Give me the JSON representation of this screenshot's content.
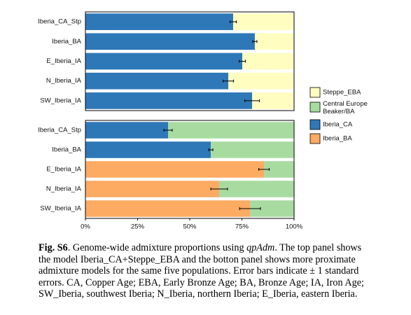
{
  "chart_data": [
    {
      "type": "bar",
      "orientation": "horizontal",
      "stacked": true,
      "categories": [
        "Iberia_CA_Stp",
        "Iberia_BA",
        "E_Iberia_IA",
        "N_Iberia_IA",
        "SW_Iberia_IA"
      ],
      "series": [
        {
          "name": "Iberia_CA",
          "color": "#2e78b7",
          "values": [
            70.8,
            81.2,
            75.2,
            68.5,
            79.9
          ],
          "errors": [
            1.5,
            1,
            1.5,
            2.5,
            3.5
          ]
        },
        {
          "name": "Steppe_EBA",
          "color": "#fffdc0",
          "values": [
            29.2,
            18.8,
            24.8,
            31.5,
            20.1
          ]
        }
      ],
      "xlim": [
        0,
        100
      ]
    },
    {
      "type": "bar",
      "orientation": "horizontal",
      "stacked": true,
      "categories": [
        "Iberia_CA_Stp",
        "Iberia_BA",
        "E_Iberia_IA",
        "N_Iberia_IA",
        "SW_Iberia_IA"
      ],
      "series": [
        {
          "name": "Iberia_CA",
          "color": "#2e78b7",
          "values": [
            39.6,
            60.1,
            null,
            null,
            null
          ],
          "errors": [
            2,
            1,
            null,
            null,
            null
          ]
        },
        {
          "name": "Iberia_BA",
          "color": "#fdaa63",
          "values": [
            null,
            null,
            85.6,
            64.1,
            78.9
          ],
          "errors": [
            null,
            null,
            2.5,
            4,
            5
          ]
        },
        {
          "name": "Central Europe Beaker/BA",
          "color": "#a8dba0",
          "values": [
            60.4,
            39.9,
            14.4,
            35.9,
            21.1
          ]
        }
      ],
      "xlim": [
        0,
        100
      ],
      "xticks": [
        {
          "value": 0,
          "label": "0%"
        },
        {
          "value": 25,
          "label": "25%"
        },
        {
          "value": 50,
          "label": "50%"
        },
        {
          "value": 75,
          "label": "75%"
        },
        {
          "value": 100,
          "label": "100%"
        }
      ],
      "legend": "right"
    }
  ],
  "caption": {
    "label": "Fig. S6",
    "parts": [
      ". Genome-wide admixture proportions using ",
      "qpAdm",
      ". The top panel shows the model Iberia_CA+Steppe_EBA and the botton panel shows more proximate admixture models for the same five populations. Error bars indicate ± 1 standard errors. CA, Copper Age; EBA, Early Bronze Age; BA, Bronze Age; IA, Iron Age; SW_Iberia, southwest Iberia; N_Iberia, northern Iberia; E_Iberia, eastern Iberia."
    ]
  }
}
